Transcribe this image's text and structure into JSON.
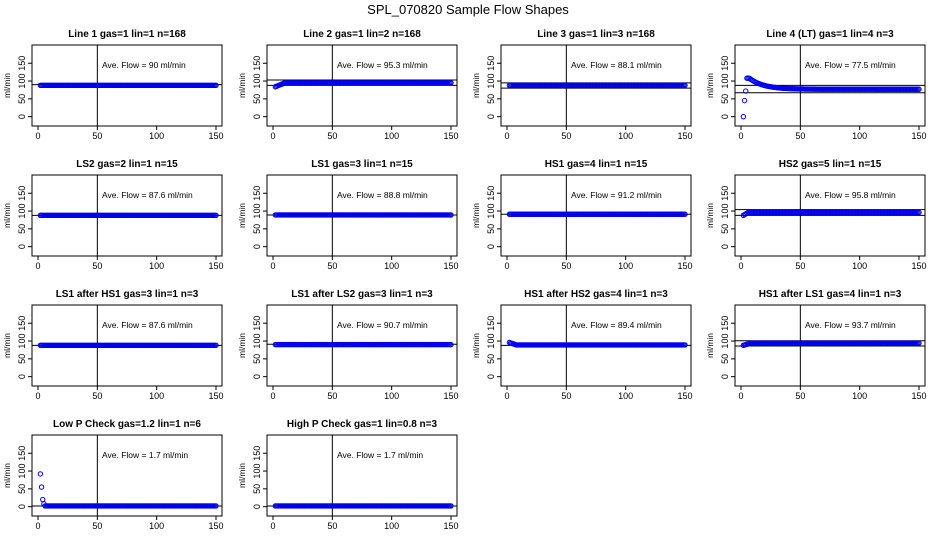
{
  "figure_title": "SPL_070820  Sample Flow Shapes",
  "colors": {
    "points": "#0000ee",
    "axes": "#000000",
    "background": "#ffffff"
  },
  "chart_data": [
    {
      "type": "scatter",
      "title": "Line 1 gas=1 lin=1 n=168",
      "annotation": "Ave. Flow =  90  ml/min",
      "ylabel": "ml/min",
      "xlim": [
        0,
        150
      ],
      "ylim": [
        -15,
        190
      ],
      "xticks": [
        "0",
        "50",
        "100",
        "150"
      ],
      "yticks": [
        "0",
        "50",
        "100",
        "150"
      ],
      "vline_x": 50,
      "hlines": [
        90
      ],
      "series": {
        "shape": "flat",
        "level": 88,
        "x": [
          2,
          150
        ]
      }
    },
    {
      "type": "scatter",
      "title": "Line 2 gas=1 lin=2 n=168",
      "annotation": "Ave. Flow =  95.3  ml/min",
      "ylabel": "ml/min",
      "xlim": [
        0,
        150
      ],
      "ylim": [
        -15,
        190
      ],
      "xticks": [
        "0",
        "50",
        "100",
        "150"
      ],
      "yticks": [
        "0",
        "50",
        "100",
        "150"
      ],
      "vline_x": 50,
      "hlines": [
        88,
        103
      ],
      "series": {
        "shape": "ramp",
        "start": 84,
        "level": 95,
        "settle_x": 10,
        "x": [
          2,
          150
        ]
      }
    },
    {
      "type": "scatter",
      "title": "Line 3 gas=1 lin=3 n=168",
      "annotation": "Ave. Flow =  88.1  ml/min",
      "ylabel": "ml/min",
      "xlim": [
        0,
        150
      ],
      "ylim": [
        -15,
        190
      ],
      "xticks": [
        "0",
        "50",
        "100",
        "150"
      ],
      "yticks": [
        "0",
        "50",
        "100",
        "150"
      ],
      "vline_x": 50,
      "hlines": [
        80,
        95
      ],
      "series": {
        "shape": "flat",
        "level": 88,
        "x": [
          2,
          150
        ]
      }
    },
    {
      "type": "scatter",
      "title": "Line 4 (LT) gas=1 lin=4 n=3",
      "annotation": "Ave. Flow =  77.5  ml/min",
      "ylabel": "ml/min",
      "xlim": [
        0,
        150
      ],
      "ylim": [
        -15,
        190
      ],
      "xticks": [
        "0",
        "50",
        "100",
        "150"
      ],
      "yticks": [
        "0",
        "50",
        "100",
        "150"
      ],
      "vline_x": 50,
      "hlines": [
        67,
        88
      ],
      "series": {
        "shape": "peak",
        "level": 77,
        "x": [
          2,
          150
        ]
      }
    },
    {
      "type": "scatter",
      "title": "LS2 gas=2 lin=1 n=15",
      "annotation": "Ave. Flow =  87.6  ml/min",
      "ylabel": "ml/min",
      "xlim": [
        0,
        150
      ],
      "ylim": [
        -15,
        190
      ],
      "xticks": [
        "0",
        "50",
        "100",
        "150"
      ],
      "yticks": [
        "0",
        "50",
        "100",
        "150"
      ],
      "vline_x": 50,
      "hlines": [
        88
      ],
      "series": {
        "shape": "flat",
        "level": 88,
        "x": [
          2,
          150
        ]
      }
    },
    {
      "type": "scatter",
      "title": "LS1 gas=3 lin=1 n=15",
      "annotation": "Ave. Flow =  88.8  ml/min",
      "ylabel": "ml/min",
      "xlim": [
        0,
        150
      ],
      "ylim": [
        -15,
        190
      ],
      "xticks": [
        "0",
        "50",
        "100",
        "150"
      ],
      "yticks": [
        "0",
        "50",
        "100",
        "150"
      ],
      "vline_x": 50,
      "hlines": [
        89
      ],
      "series": {
        "shape": "flat",
        "level": 89,
        "x": [
          2,
          150
        ]
      }
    },
    {
      "type": "scatter",
      "title": "HS1 gas=4 lin=1 n=15",
      "annotation": "Ave. Flow =  91.2  ml/min",
      "ylabel": "ml/min",
      "xlim": [
        0,
        150
      ],
      "ylim": [
        -15,
        190
      ],
      "xticks": [
        "0",
        "50",
        "100",
        "150"
      ],
      "yticks": [
        "0",
        "50",
        "100",
        "150"
      ],
      "vline_x": 50,
      "hlines": [
        91
      ],
      "series": {
        "shape": "flat",
        "level": 91,
        "x": [
          2,
          150
        ]
      }
    },
    {
      "type": "scatter",
      "title": "HS2 gas=5 lin=1 n=15",
      "annotation": "Ave. Flow =  95.8  ml/min",
      "ylabel": "ml/min",
      "xlim": [
        0,
        150
      ],
      "ylim": [
        -15,
        190
      ],
      "xticks": [
        "0",
        "50",
        "100",
        "150"
      ],
      "yticks": [
        "0",
        "50",
        "100",
        "150"
      ],
      "vline_x": 50,
      "hlines": [
        88,
        104
      ],
      "series": {
        "shape": "ramp",
        "start": 88,
        "level": 96,
        "settle_x": 6,
        "x": [
          2,
          150
        ]
      }
    },
    {
      "type": "scatter",
      "title": "LS1 after HS1 gas=3 lin=1 n=3",
      "annotation": "Ave. Flow =  87.6  ml/min",
      "ylabel": "ml/min",
      "xlim": [
        0,
        150
      ],
      "ylim": [
        -15,
        190
      ],
      "xticks": [
        "0",
        "50",
        "100",
        "150"
      ],
      "yticks": [
        "0",
        "50",
        "100",
        "150"
      ],
      "vline_x": 50,
      "hlines": [
        88
      ],
      "series": {
        "shape": "flat",
        "level": 88,
        "x": [
          2,
          150
        ]
      }
    },
    {
      "type": "scatter",
      "title": "LS1 after LS2 gas=3 lin=1 n=3",
      "annotation": "Ave. Flow =  90.7  ml/min",
      "ylabel": "ml/min",
      "xlim": [
        0,
        150
      ],
      "ylim": [
        -15,
        190
      ],
      "xticks": [
        "0",
        "50",
        "100",
        "150"
      ],
      "yticks": [
        "0",
        "50",
        "100",
        "150"
      ],
      "vline_x": 50,
      "hlines": [
        91
      ],
      "series": {
        "shape": "flat",
        "level": 90,
        "x": [
          2,
          150
        ]
      }
    },
    {
      "type": "scatter",
      "title": "HS1 after HS2 gas=4 lin=1 n=3",
      "annotation": "Ave. Flow =  89.4  ml/min",
      "ylabel": "ml/min",
      "xlim": [
        0,
        150
      ],
      "ylim": [
        -15,
        190
      ],
      "xticks": [
        "0",
        "50",
        "100",
        "150"
      ],
      "yticks": [
        "0",
        "50",
        "100",
        "150"
      ],
      "vline_x": 50,
      "hlines": [
        88
      ],
      "series": {
        "shape": "decay",
        "start": 96,
        "level": 89,
        "settle_x": 8,
        "x": [
          2,
          150
        ]
      }
    },
    {
      "type": "scatter",
      "title": "HS1 after LS1 gas=4 lin=1 n=3",
      "annotation": "Ave. Flow =  93.7  ml/min",
      "ylabel": "ml/min",
      "xlim": [
        0,
        150
      ],
      "ylim": [
        -15,
        190
      ],
      "xticks": [
        "0",
        "50",
        "100",
        "150"
      ],
      "yticks": [
        "0",
        "50",
        "100",
        "150"
      ],
      "vline_x": 50,
      "hlines": [
        86,
        101
      ],
      "series": {
        "shape": "ramp",
        "start": 88,
        "level": 94,
        "settle_x": 8,
        "x": [
          2,
          150
        ]
      }
    },
    {
      "type": "scatter",
      "title": "Low P Check gas=1.2 lin=1 n=6",
      "annotation": "Ave. Flow =  1.7  ml/min",
      "ylabel": "ml/min",
      "xlim": [
        0,
        150
      ],
      "ylim": [
        -15,
        190
      ],
      "xticks": [
        "0",
        "50",
        "100",
        "150"
      ],
      "yticks": [
        "0",
        "50",
        "100",
        "150"
      ],
      "vline_x": 50,
      "hlines": [
        2
      ],
      "series": {
        "shape": "drop",
        "start_points": [
          92,
          55,
          20,
          8
        ],
        "level": 2,
        "x": [
          2,
          150
        ]
      }
    },
    {
      "type": "scatter",
      "title": "High P Check gas=1 lin=0.8 n=3",
      "annotation": "Ave. Flow =  1.7  ml/min",
      "ylabel": "ml/min",
      "xlim": [
        0,
        150
      ],
      "ylim": [
        -15,
        190
      ],
      "xticks": [
        "0",
        "50",
        "100",
        "150"
      ],
      "yticks": [
        "0",
        "50",
        "100",
        "150"
      ],
      "vline_x": 50,
      "hlines": [
        2
      ],
      "series": {
        "shape": "flat",
        "level": 2,
        "x": [
          2,
          150
        ]
      }
    }
  ]
}
